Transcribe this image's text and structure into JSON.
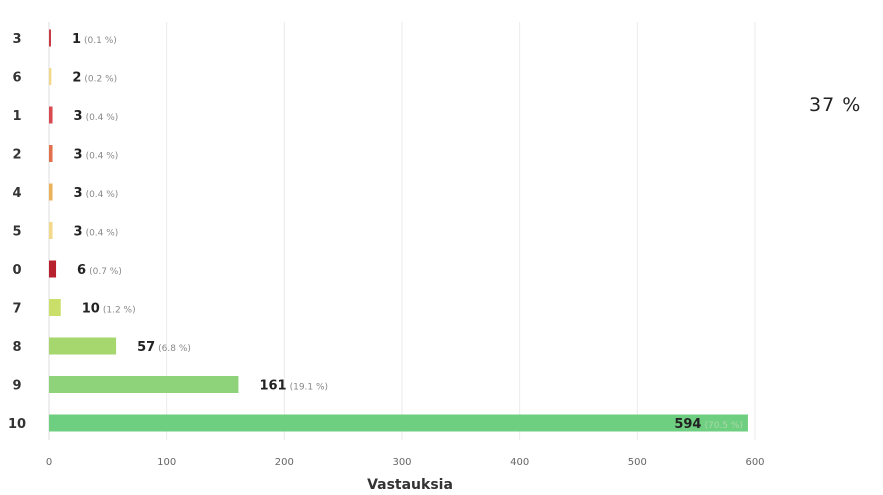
{
  "chart_data": {
    "type": "bar",
    "orientation": "horizontal",
    "categories": [
      "3",
      "6",
      "1",
      "2",
      "4",
      "5",
      "0",
      "7",
      "8",
      "9",
      "10"
    ],
    "values": [
      1,
      2,
      3,
      3,
      3,
      3,
      6,
      10,
      57,
      161,
      594
    ],
    "percent_labels": [
      "(0.1 %)",
      "(0.2 %)",
      "(0.4 %)",
      "(0.4 %)",
      "(0.4 %)",
      "(0.4 %)",
      "(0.7 %)",
      "(1.2 %)",
      "(6.8 %)",
      "(19.1 %)",
      "(70.5 %)"
    ],
    "bar_colors": [
      "#c93a45",
      "#f2d98a",
      "#d84a50",
      "#e0714c",
      "#eab35a",
      "#f2d98a",
      "#b8202e",
      "#c9df6a",
      "#a6d66e",
      "#8ed27a",
      "#6fcf80"
    ],
    "xlabel": "Vastauksia",
    "xlim": [
      0,
      600
    ],
    "xticks": [
      "0",
      "100",
      "200",
      "300",
      "400",
      "500",
      "600"
    ],
    "grid": true
  },
  "side_text": "37 %"
}
